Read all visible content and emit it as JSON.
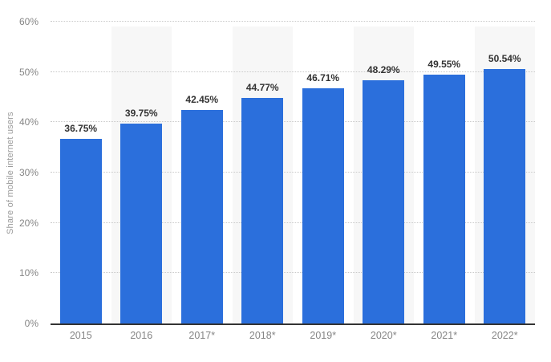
{
  "chart_data": {
    "type": "bar",
    "title": "",
    "xlabel": "",
    "ylabel": "Share of mobile internet users",
    "categories": [
      "2015",
      "2016",
      "2017*",
      "2018*",
      "2019*",
      "2020*",
      "2021*",
      "2022*"
    ],
    "values": [
      36.75,
      39.75,
      42.45,
      44.77,
      46.71,
      48.29,
      49.55,
      50.54
    ],
    "value_labels": [
      "36.75%",
      "39.75%",
      "42.45%",
      "44.77%",
      "46.71%",
      "48.29%",
      "49.55%",
      "50.54%"
    ],
    "ylim": [
      0,
      60
    ],
    "ytick_step": 10,
    "ytick_labels": [
      "0%",
      "10%",
      "20%",
      "30%",
      "40%",
      "50%",
      "60%"
    ],
    "grid": "horizontal-dotted",
    "legend": "none",
    "colors": {
      "bar": "#2b6fdc",
      "stripe": "#f7f7f7",
      "gridline": "#c9c9c9",
      "baseline": "#333333",
      "tick_text": "#858585",
      "value_label_text": "#333333",
      "axis_title_text": "#9a9a9a",
      "background": "#ffffff"
    }
  }
}
